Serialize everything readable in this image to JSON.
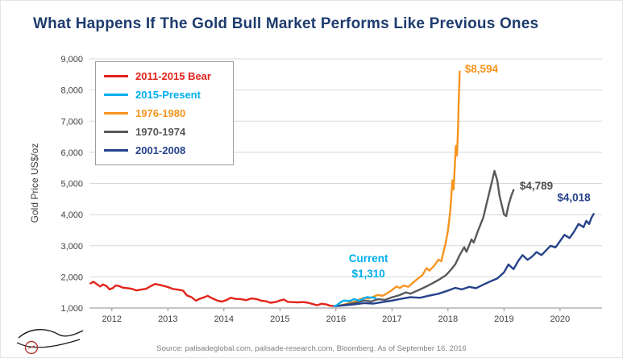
{
  "page": {
    "title": "What Happens If The Gold Bull Market Performs Like Previous Ones",
    "title_color": "#1e3c6e",
    "source": "Source: palisadeglobal.com, palisade-research.com, Bloomberg. As of September 16, 2016"
  },
  "chart_data": {
    "type": "line",
    "title": "What Happens If The Gold Bull Market Performs Like Previous Ones",
    "xlabel": "",
    "ylabel": "Gold Price US$/oz",
    "xlim": [
      2011.6,
      2020.75
    ],
    "ylim": [
      1000,
      9000
    ],
    "yticks": [
      1000,
      2000,
      3000,
      4000,
      5000,
      6000,
      7000,
      8000,
      9000
    ],
    "xticks": [
      2012,
      2013,
      2014,
      2015,
      2016,
      2017,
      2018,
      2019,
      2020
    ],
    "grid": "horizontal",
    "legend_position": "top-left",
    "series": [
      {
        "name": "2011-2015 Bear",
        "color": "#e2231a",
        "z": 0,
        "points": [
          [
            2011.62,
            1790
          ],
          [
            2011.67,
            1845
          ],
          [
            2011.73,
            1770
          ],
          [
            2011.79,
            1690
          ],
          [
            2011.84,
            1755
          ],
          [
            2011.9,
            1710
          ],
          [
            2011.96,
            1598
          ],
          [
            2012.02,
            1645
          ],
          [
            2012.07,
            1725
          ],
          [
            2012.13,
            1705
          ],
          [
            2012.19,
            1655
          ],
          [
            2012.27,
            1640
          ],
          [
            2012.36,
            1615
          ],
          [
            2012.44,
            1565
          ],
          [
            2012.52,
            1590
          ],
          [
            2012.61,
            1615
          ],
          [
            2012.69,
            1700
          ],
          [
            2012.77,
            1772
          ],
          [
            2012.86,
            1740
          ],
          [
            2012.94,
            1705
          ],
          [
            2013.0,
            1672
          ],
          [
            2013.09,
            1612
          ],
          [
            2013.18,
            1590
          ],
          [
            2013.27,
            1560
          ],
          [
            2013.34,
            1405
          ],
          [
            2013.42,
            1350
          ],
          [
            2013.5,
            1232
          ],
          [
            2013.56,
            1290
          ],
          [
            2013.64,
            1338
          ],
          [
            2013.71,
            1392
          ],
          [
            2013.79,
            1312
          ],
          [
            2013.88,
            1242
          ],
          [
            2013.96,
            1205
          ],
          [
            2014.04,
            1252
          ],
          [
            2014.12,
            1328
          ],
          [
            2014.21,
            1292
          ],
          [
            2014.3,
            1288
          ],
          [
            2014.4,
            1252
          ],
          [
            2014.49,
            1308
          ],
          [
            2014.58,
            1288
          ],
          [
            2014.67,
            1232
          ],
          [
            2014.75,
            1218
          ],
          [
            2014.83,
            1168
          ],
          [
            2014.92,
            1192
          ],
          [
            2015.0,
            1242
          ],
          [
            2015.07,
            1272
          ],
          [
            2015.14,
            1198
          ],
          [
            2015.23,
            1188
          ],
          [
            2015.32,
            1180
          ],
          [
            2015.41,
            1192
          ],
          [
            2015.5,
            1168
          ],
          [
            2015.58,
            1132
          ],
          [
            2015.66,
            1088
          ],
          [
            2015.74,
            1138
          ],
          [
            2015.82,
            1118
          ],
          [
            2015.9,
            1072
          ],
          [
            2015.97,
            1062
          ]
        ]
      },
      {
        "name": "2015-Present",
        "color": "#00aeef",
        "z": 1,
        "points": [
          [
            2015.97,
            1062
          ],
          [
            2016.02,
            1092
          ],
          [
            2016.07,
            1165
          ],
          [
            2016.12,
            1228
          ],
          [
            2016.17,
            1242
          ],
          [
            2016.22,
            1218
          ],
          [
            2016.27,
            1238
          ],
          [
            2016.32,
            1288
          ],
          [
            2016.37,
            1262
          ],
          [
            2016.41,
            1232
          ],
          [
            2016.46,
            1272
          ],
          [
            2016.51,
            1322
          ],
          [
            2016.56,
            1352
          ],
          [
            2016.61,
            1332
          ],
          [
            2016.66,
            1342
          ],
          [
            2016.71,
            1310
          ]
        ]
      },
      {
        "name": "1976-1980",
        "color": "#f7941e",
        "z": 0,
        "points": [
          [
            2016.0,
            1062
          ],
          [
            2016.08,
            1082
          ],
          [
            2016.17,
            1122
          ],
          [
            2016.25,
            1162
          ],
          [
            2016.33,
            1205
          ],
          [
            2016.42,
            1268
          ],
          [
            2016.5,
            1330
          ],
          [
            2016.58,
            1302
          ],
          [
            2016.67,
            1362
          ],
          [
            2016.75,
            1422
          ],
          [
            2016.83,
            1392
          ],
          [
            2016.92,
            1482
          ],
          [
            2017.0,
            1572
          ],
          [
            2017.08,
            1692
          ],
          [
            2017.14,
            1642
          ],
          [
            2017.21,
            1722
          ],
          [
            2017.29,
            1682
          ],
          [
            2017.38,
            1822
          ],
          [
            2017.46,
            1942
          ],
          [
            2017.54,
            2052
          ],
          [
            2017.62,
            2282
          ],
          [
            2017.67,
            2202
          ],
          [
            2017.75,
            2352
          ],
          [
            2017.83,
            2552
          ],
          [
            2017.88,
            2502
          ],
          [
            2017.92,
            2802
          ],
          [
            2017.96,
            3102
          ],
          [
            2018.0,
            3502
          ],
          [
            2018.04,
            4102
          ],
          [
            2018.06,
            4602
          ],
          [
            2018.08,
            5102
          ],
          [
            2018.1,
            4802
          ],
          [
            2018.12,
            5502
          ],
          [
            2018.14,
            6202
          ],
          [
            2018.16,
            5902
          ],
          [
            2018.18,
            6802
          ],
          [
            2018.19,
            7602
          ],
          [
            2018.2,
            8102
          ],
          [
            2018.21,
            8594
          ]
        ]
      },
      {
        "name": "1970-1974",
        "color": "#58595b",
        "z": 0,
        "points": [
          [
            2016.0,
            1062
          ],
          [
            2016.13,
            1092
          ],
          [
            2016.25,
            1132
          ],
          [
            2016.38,
            1182
          ],
          [
            2016.5,
            1242
          ],
          [
            2016.63,
            1212
          ],
          [
            2016.75,
            1282
          ],
          [
            2016.88,
            1262
          ],
          [
            2017.0,
            1342
          ],
          [
            2017.13,
            1412
          ],
          [
            2017.25,
            1502
          ],
          [
            2017.33,
            1462
          ],
          [
            2017.46,
            1562
          ],
          [
            2017.58,
            1662
          ],
          [
            2017.71,
            1782
          ],
          [
            2017.83,
            1902
          ],
          [
            2017.96,
            2052
          ],
          [
            2018.04,
            2202
          ],
          [
            2018.13,
            2402
          ],
          [
            2018.21,
            2702
          ],
          [
            2018.29,
            2952
          ],
          [
            2018.33,
            2802
          ],
          [
            2018.42,
            3202
          ],
          [
            2018.46,
            3102
          ],
          [
            2018.54,
            3502
          ],
          [
            2018.63,
            3902
          ],
          [
            2018.71,
            4502
          ],
          [
            2018.79,
            5102
          ],
          [
            2018.83,
            5402
          ],
          [
            2018.88,
            5102
          ],
          [
            2018.92,
            4602
          ],
          [
            2018.96,
            4302
          ],
          [
            2019.0,
            4002
          ],
          [
            2019.04,
            3952
          ],
          [
            2019.08,
            4302
          ],
          [
            2019.13,
            4602
          ],
          [
            2019.17,
            4789
          ]
        ]
      },
      {
        "name": "2001-2008",
        "color": "#26428b",
        "z": 0,
        "points": [
          [
            2016.0,
            1062
          ],
          [
            2016.17,
            1088
          ],
          [
            2016.33,
            1118
          ],
          [
            2016.5,
            1158
          ],
          [
            2016.67,
            1142
          ],
          [
            2016.83,
            1188
          ],
          [
            2017.0,
            1238
          ],
          [
            2017.17,
            1298
          ],
          [
            2017.33,
            1348
          ],
          [
            2017.5,
            1328
          ],
          [
            2017.67,
            1398
          ],
          [
            2017.83,
            1458
          ],
          [
            2018.0,
            1558
          ],
          [
            2018.13,
            1648
          ],
          [
            2018.25,
            1598
          ],
          [
            2018.38,
            1678
          ],
          [
            2018.5,
            1638
          ],
          [
            2018.63,
            1748
          ],
          [
            2018.75,
            1848
          ],
          [
            2018.88,
            1948
          ],
          [
            2019.0,
            2148
          ],
          [
            2019.08,
            2398
          ],
          [
            2019.17,
            2248
          ],
          [
            2019.25,
            2498
          ],
          [
            2019.33,
            2698
          ],
          [
            2019.42,
            2548
          ],
          [
            2019.5,
            2648
          ],
          [
            2019.58,
            2798
          ],
          [
            2019.67,
            2698
          ],
          [
            2019.75,
            2848
          ],
          [
            2019.83,
            2998
          ],
          [
            2019.92,
            2948
          ],
          [
            2020.0,
            3148
          ],
          [
            2020.08,
            3348
          ],
          [
            2020.17,
            3248
          ],
          [
            2020.25,
            3448
          ],
          [
            2020.33,
            3698
          ],
          [
            2020.42,
            3598
          ],
          [
            2020.47,
            3798
          ],
          [
            2020.52,
            3698
          ],
          [
            2020.56,
            3898
          ],
          [
            2020.6,
            4018
          ]
        ]
      }
    ],
    "annotations": [
      {
        "text": "$8,594",
        "x": 2018.3,
        "y": 8560,
        "color": "#f7941e",
        "anchor": "start"
      },
      {
        "text": "$4,789",
        "x": 2019.28,
        "y": 4800,
        "color": "#4d4d4f",
        "anchor": "start"
      },
      {
        "text": "$4,018",
        "x": 2019.95,
        "y": 4430,
        "color": "#26428b",
        "anchor": "start"
      },
      {
        "text": "Current",
        "x": 2016.58,
        "y": 2480,
        "color": "#00aeef",
        "anchor": "middle"
      },
      {
        "text": "$1,310",
        "x": 2016.58,
        "y": 1990,
        "color": "#00aeef",
        "anchor": "middle"
      }
    ]
  }
}
